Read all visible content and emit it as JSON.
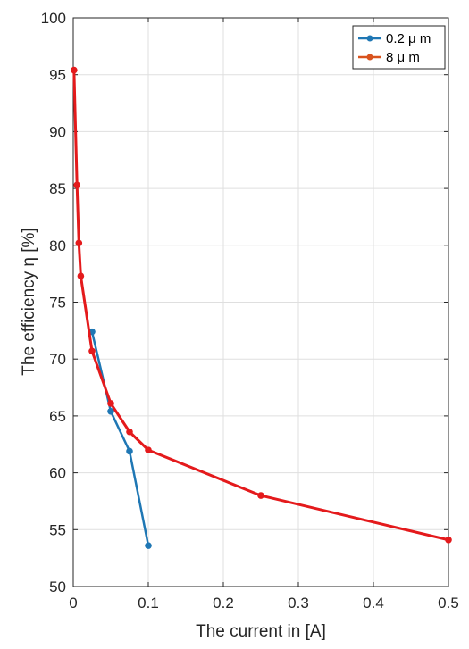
{
  "chart_data": {
    "type": "line",
    "xlabel": "The current in [A]",
    "ylabel": "The efficiency η [%]",
    "xlim": [
      0,
      0.5
    ],
    "ylim": [
      50,
      100
    ],
    "x_ticks": [
      0,
      0.1,
      0.2,
      0.3,
      0.4,
      0.5
    ],
    "y_ticks": [
      50,
      55,
      60,
      65,
      70,
      75,
      80,
      85,
      90,
      95,
      100
    ],
    "grid": true,
    "legend_position": "top-right",
    "series": [
      {
        "name": "0.2 μ m",
        "color": "#1f77b4",
        "points": [
          {
            "x": 0.025,
            "y": 72.4
          },
          {
            "x": 0.05,
            "y": 65.4
          },
          {
            "x": 0.075,
            "y": 61.9
          },
          {
            "x": 0.1,
            "y": 53.6
          }
        ]
      },
      {
        "name": "8 μ m",
        "color": "#d9531e",
        "line_color": "#e41a1c",
        "points": [
          {
            "x": 0.001,
            "y": 95.4
          },
          {
            "x": 0.005,
            "y": 85.3
          },
          {
            "x": 0.0075,
            "y": 80.2
          },
          {
            "x": 0.01,
            "y": 77.3
          },
          {
            "x": 0.025,
            "y": 70.7
          },
          {
            "x": 0.05,
            "y": 66.1
          },
          {
            "x": 0.075,
            "y": 63.6
          },
          {
            "x": 0.1,
            "y": 62.0
          },
          {
            "x": 0.25,
            "y": 58.0
          },
          {
            "x": 0.5,
            "y": 54.1
          }
        ]
      }
    ]
  }
}
